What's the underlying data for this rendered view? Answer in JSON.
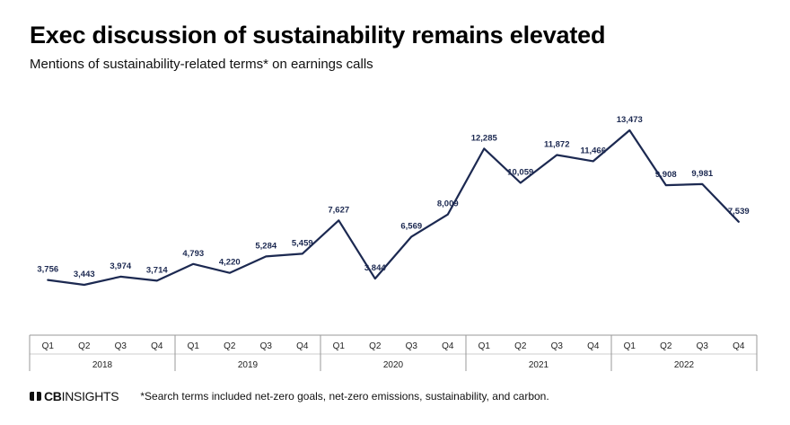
{
  "title": "Exec discussion of sustainability remains elevated",
  "subtitle": "Mentions of sustainability-related terms* on earnings calls",
  "footnote": "*Search terms included net-zero goals, net-zero emissions, sustainability, and carbon.",
  "brand": {
    "cb": "CB",
    "insights": "INSIGHTS"
  },
  "colors": {
    "line": "#1c2951",
    "axis": "#999999"
  },
  "chart_data": {
    "type": "line",
    "title": "Exec discussion of sustainability remains elevated",
    "subtitle": "Mentions of sustainability-related terms* on earnings calls",
    "quarters": [
      "Q1",
      "Q2",
      "Q3",
      "Q4",
      "Q1",
      "Q2",
      "Q3",
      "Q4",
      "Q1",
      "Q2",
      "Q3",
      "Q4",
      "Q1",
      "Q2",
      "Q3",
      "Q4",
      "Q1",
      "Q2",
      "Q3",
      "Q4"
    ],
    "years": [
      "2018",
      "2019",
      "2020",
      "2021",
      "2022"
    ],
    "values": [
      3756,
      3443,
      3974,
      3714,
      4793,
      4220,
      5284,
      5459,
      7627,
      3844,
      6569,
      8009,
      12285,
      10059,
      11872,
      11466,
      13473,
      9908,
      9981,
      7539
    ],
    "value_labels": [
      "3,756",
      "3,443",
      "3,974",
      "3,714",
      "4,793",
      "4,220",
      "5,284",
      "5,459",
      "7,627",
      "3,844",
      "6,569",
      "8,009",
      "12,285",
      "10,059",
      "11,872",
      "11,466",
      "13,473",
      "9,908",
      "9,981",
      "7,539"
    ],
    "grid": false,
    "legend": "none"
  }
}
